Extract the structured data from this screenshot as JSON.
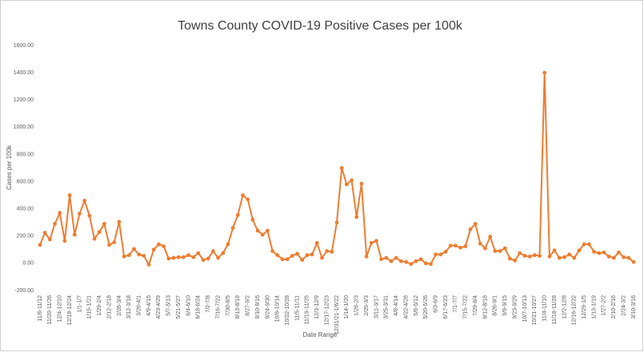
{
  "chart_data": {
    "type": "line",
    "title": "Towns County COVID-19 Positive Cases per 100k",
    "x_label": "Date Range",
    "y_label": "Cases per 100k",
    "categories": [
      "11/6-11/12",
      null,
      "11/20-11/26",
      null,
      "12/4-12/10",
      null,
      "12/18-12/24",
      null,
      "1/1-1/7",
      null,
      "1/15-1/21",
      null,
      "1/29-2/4",
      null,
      "2/12-2/18",
      null,
      "2/26-3/4",
      null,
      "3/12-3/18",
      null,
      "3/26-4/1",
      null,
      "4/9-4/15",
      null,
      "4/23-4/29",
      null,
      "5/7-5/13",
      null,
      "5/21-5/27",
      null,
      "6/4-6/10",
      null,
      "6/18-6/24",
      null,
      "7/2-7/8",
      null,
      "7/16-7/22",
      null,
      "7/30-8/5",
      null,
      "8/13-8/19",
      null,
      "8/27-9/2",
      null,
      "9/10-9/16",
      null,
      "9/24-9/30",
      null,
      "10/8-10/14",
      null,
      "10/22-10/28",
      null,
      "11/5-11/11",
      null,
      "11/19-11/25",
      null,
      "12/3-12/9",
      null,
      "12/17-12/23",
      null,
      "12/31/21-1/6/22",
      null,
      "1/14-1/20",
      null,
      "1/28-2/3",
      null,
      "2/25-3/3",
      null,
      "3/11-3/17",
      null,
      "3/25-3/31",
      null,
      "4/8-4/14",
      null,
      "4/22-4/28",
      null,
      "5/6-5/12",
      null,
      "5/20-5/26",
      null,
      "6/3-6/9",
      null,
      "6/17-6/23",
      null,
      "7/1-7/7",
      null,
      "7/15-7/22",
      null,
      "7/29-8/4",
      null,
      "8/12-8/18",
      null,
      "8/26-9/1",
      null,
      "9/9-9/15",
      null,
      "9/23-9/29",
      null,
      "10/7-10/13",
      null,
      "10/21-10/27",
      null,
      "11/4-11/10",
      null,
      "11/18-11/28",
      null,
      "12/2-12/8",
      null,
      "12/16-12/22",
      null,
      "12/29-1/5",
      null,
      "1/13-1/19",
      null,
      "1/27-2/2",
      null,
      "2/10-2/16",
      null,
      "2/24-3/2",
      null,
      "3/10-3/16"
    ],
    "series": [
      {
        "name": "Cases per 100k",
        "color": "#ed7d31",
        "values": [
          135,
          225,
          175,
          290,
          370,
          165,
          500,
          210,
          365,
          460,
          350,
          180,
          230,
          290,
          135,
          155,
          305,
          50,
          60,
          105,
          65,
          55,
          -10,
          100,
          140,
          125,
          35,
          40,
          45,
          45,
          60,
          45,
          75,
          25,
          35,
          90,
          40,
          75,
          140,
          260,
          355,
          500,
          470,
          320,
          240,
          210,
          240,
          90,
          60,
          30,
          30,
          55,
          70,
          25,
          60,
          65,
          150,
          40,
          90,
          85,
          300,
          700,
          580,
          610,
          340,
          585,
          50,
          150,
          165,
          30,
          40,
          15,
          40,
          15,
          10,
          -5,
          15,
          30,
          0,
          -5,
          65,
          65,
          85,
          130,
          130,
          115,
          125,
          250,
          290,
          145,
          110,
          195,
          90,
          90,
          110,
          35,
          20,
          75,
          55,
          50,
          60,
          55,
          1400,
          50,
          95,
          40,
          45,
          65,
          40,
          95,
          140,
          140,
          85,
          75,
          80,
          50,
          40,
          80,
          45,
          40,
          10
        ]
      }
    ],
    "ylim": [
      -200,
      1600
    ],
    "yticks": [
      {
        "value": -200,
        "label": "-200.00"
      },
      {
        "value": 0,
        "label": "0.00"
      },
      {
        "value": 200,
        "label": "200.00"
      },
      {
        "value": 400,
        "label": "400.00"
      },
      {
        "value": 600,
        "label": "600.00"
      },
      {
        "value": 800,
        "label": "800.00"
      },
      {
        "value": 1000,
        "label": "1000.00"
      },
      {
        "value": 1200,
        "label": "1200.00"
      },
      {
        "value": 1400,
        "label": "1400.00"
      },
      {
        "value": 1600,
        "label": "1600.00"
      }
    ],
    "grid": false
  }
}
